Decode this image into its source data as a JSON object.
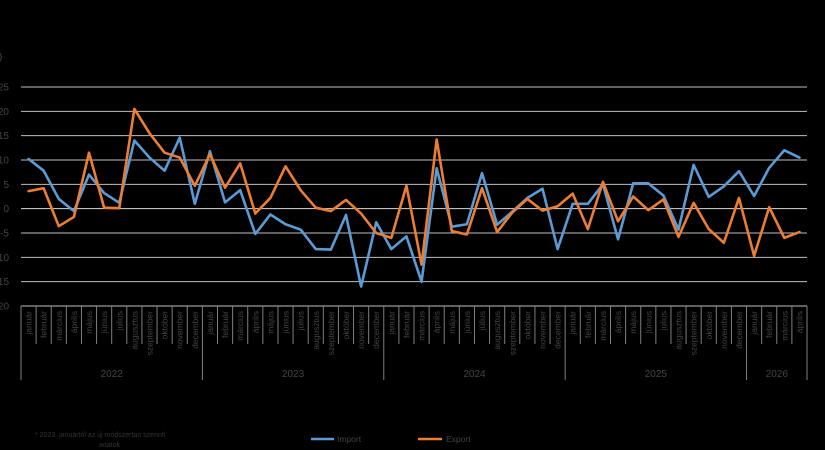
{
  "chart_data": {
    "type": "line",
    "yticks": [
      "25",
      "20",
      "15",
      "10",
      "5",
      "0",
      "-5",
      "-10",
      "-15",
      "-20"
    ],
    "ylim": [
      -20,
      25
    ],
    "months": [
      "január",
      "február",
      "március",
      "április",
      "május",
      "június",
      "július",
      "augusztus",
      "szeptember",
      "október",
      "november",
      "december"
    ],
    "years": [
      {
        "label": "2022",
        "months": 12
      },
      {
        "label": "2023",
        "months": 12
      },
      {
        "label": "2024",
        "months": 12
      },
      {
        "label": "2025",
        "months": 12
      },
      {
        "label": "2026",
        "months": 4
      }
    ],
    "series": [
      {
        "name": "Import",
        "color": "#5b9bd5",
        "values": [
          10.2,
          7.8,
          2.0,
          -0.5,
          7.0,
          3.2,
          1.2,
          14.0,
          10.5,
          7.8,
          14.6,
          1.0,
          11.8,
          1.3,
          3.8,
          -5.2,
          -1.2,
          -3.2,
          -4.3,
          -8.3,
          -8.4,
          -1.3,
          -16.0,
          -2.8,
          -8.3,
          -5.7,
          -15.0,
          8.3,
          -3.7,
          -3.2,
          7.3,
          -3.3,
          -0.6,
          2.2,
          4.1,
          -8.3,
          1.0,
          1.0,
          5.0,
          -6.3,
          5.2,
          5.2,
          2.7,
          -4.3,
          9.0,
          2.4,
          4.6,
          7.7,
          2.6,
          8.4,
          12.0,
          10.5
        ]
      },
      {
        "name": "Export",
        "color": "#ed7d31",
        "values": [
          3.6,
          4.2,
          -3.6,
          -1.7,
          11.5,
          0.2,
          0.1,
          20.5,
          15.5,
          11.5,
          10.5,
          4.7,
          11.2,
          4.3,
          9.3,
          -1.0,
          2.2,
          8.7,
          3.8,
          0.2,
          -0.5,
          1.8,
          -1.0,
          -5.0,
          -6.0,
          4.7,
          -11.5,
          14.2,
          -4.6,
          -5.3,
          4.2,
          -4.8,
          -0.8,
          2.0,
          -0.4,
          0.5,
          3.1,
          -4.2,
          5.5,
          -2.6,
          2.5,
          -0.3,
          1.9,
          -5.8,
          1.2,
          -4.2,
          -7.0,
          2.2,
          -9.7,
          0.3,
          -6.0,
          -4.8
        ]
      }
    ]
  },
  "footnote": {
    "line1": "* 2023. januártól az új módszertan szerinti",
    "line2": "adatok"
  }
}
